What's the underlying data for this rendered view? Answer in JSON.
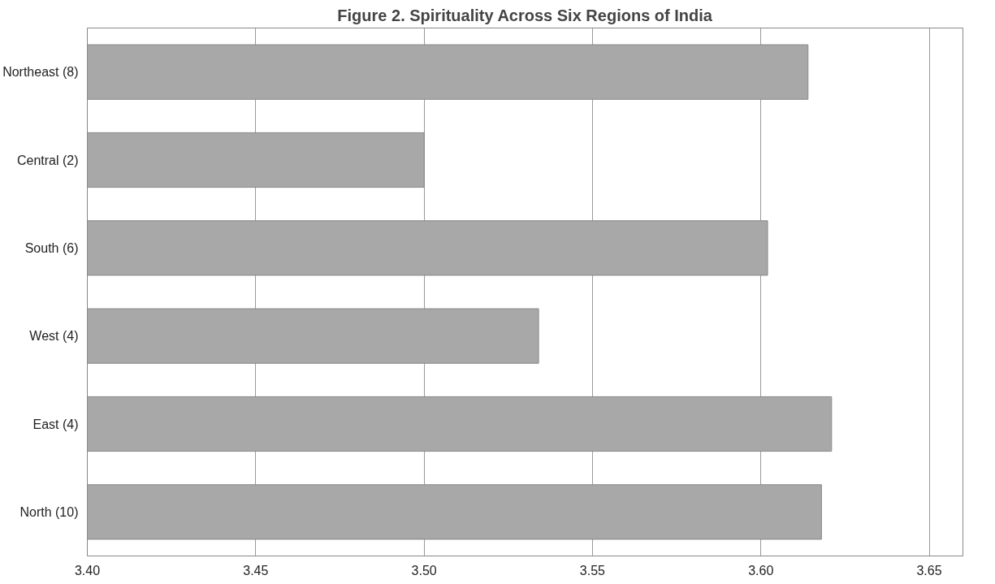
{
  "chart_data": {
    "type": "bar",
    "orientation": "horizontal",
    "title": "Figure 2. Spirituality Across Six Regions of India",
    "categories": [
      "Northeast (8)",
      "Central (2)",
      "South (6)",
      "West (4)",
      "East (4)",
      "North (10)"
    ],
    "values": [
      3.614,
      3.5,
      3.602,
      3.534,
      3.621,
      3.618
    ],
    "color": "#a8a8a8",
    "xlim": [
      3.4,
      3.66
    ],
    "xticks": [
      {
        "value": 3.4,
        "label": "3.40"
      },
      {
        "value": 3.45,
        "label": "3.45"
      },
      {
        "value": 3.5,
        "label": "3.50"
      },
      {
        "value": 3.55,
        "label": "3.55"
      },
      {
        "value": 3.6,
        "label": "3.60"
      },
      {
        "value": 3.65,
        "label": "3.65"
      }
    ],
    "grid": "x"
  }
}
